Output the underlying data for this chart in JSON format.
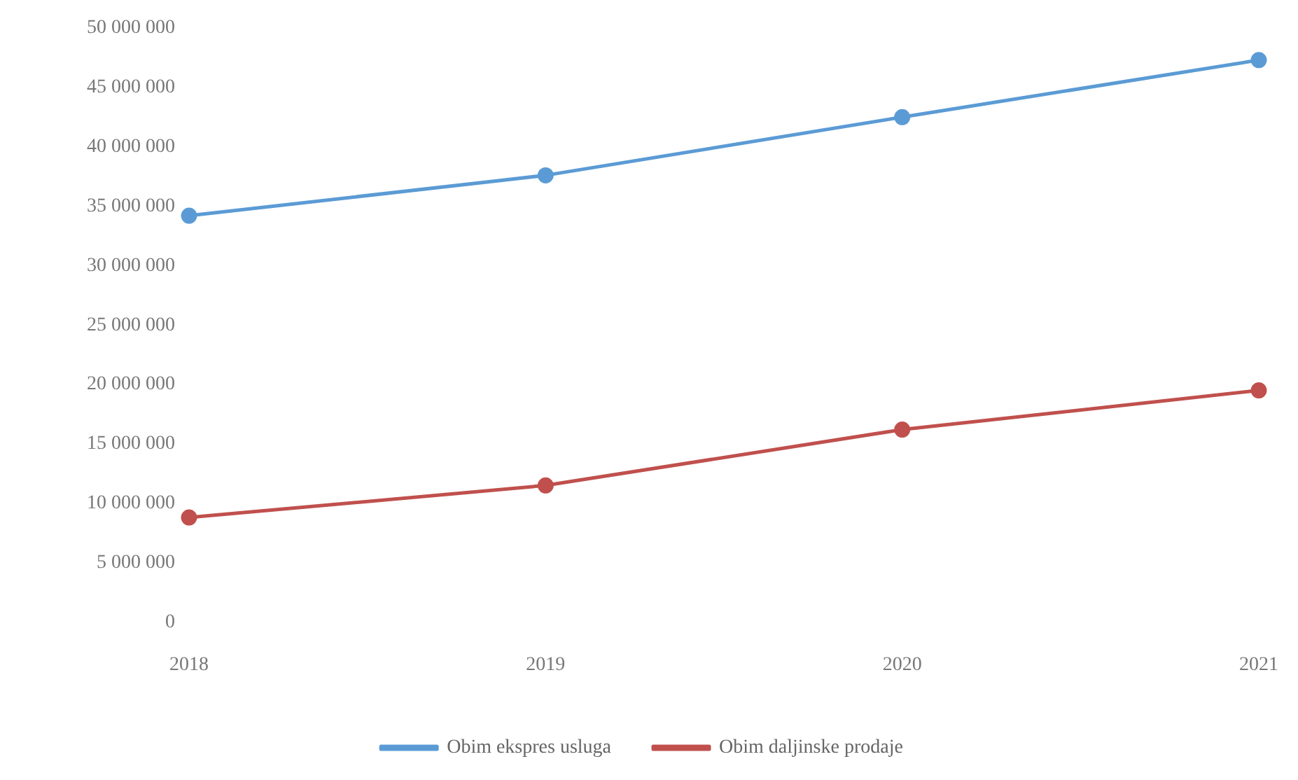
{
  "chart_data": {
    "type": "line",
    "categories": [
      "2018",
      "2019",
      "2020",
      "2021"
    ],
    "series": [
      {
        "name": "Obim ekspres usluga",
        "color": "#5b9bd5",
        "values": [
          34200000,
          37600000,
          42500000,
          47300000
        ]
      },
      {
        "name": "Obim daljinske prodaje",
        "color": "#c0504d",
        "values": [
          8800000,
          11500000,
          16200000,
          19500000
        ]
      }
    ],
    "ylim": [
      0,
      50000000
    ],
    "yticks": [
      {
        "value": 0,
        "label": "0"
      },
      {
        "value": 5000000,
        "label": "5 000 000"
      },
      {
        "value": 10000000,
        "label": "10 000 000"
      },
      {
        "value": 15000000,
        "label": "15 000 000"
      },
      {
        "value": 20000000,
        "label": "20 000 000"
      },
      {
        "value": 25000000,
        "label": "25 000 000"
      },
      {
        "value": 30000000,
        "label": "30 000 000"
      },
      {
        "value": 35000000,
        "label": "35 000 000"
      },
      {
        "value": 40000000,
        "label": "40 000 000"
      },
      {
        "value": 45000000,
        "label": "45 000 000"
      },
      {
        "value": 50000000,
        "label": "50 000 000"
      }
    ],
    "grid": false,
    "legend": "bottom",
    "marker": "circle",
    "line_style": "solid"
  }
}
